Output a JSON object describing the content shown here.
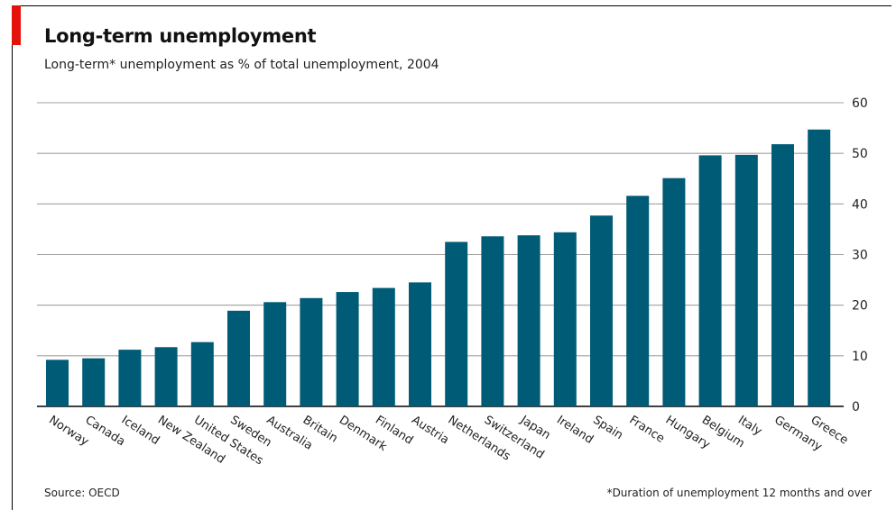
{
  "colors": {
    "accent": "#e3120b",
    "bar": "#005b76",
    "grid": "#a0a0a0",
    "axis": "#000000"
  },
  "header": {
    "title": "Long-term unemployment",
    "subtitle": "Long-term* unemployment as % of total unemployment, 2004"
  },
  "footer": {
    "source": "Source: OECD",
    "footnote": "*Duration of unemployment 12 months and over"
  },
  "chart_data": {
    "type": "bar",
    "categories": [
      "Norway",
      "Canada",
      "Iceland",
      "New Zealand",
      "United States",
      "Sweden",
      "Australia",
      "Britain",
      "Denmark",
      "Finland",
      "Austria",
      "Netherlands",
      "Switzerland",
      "Japan",
      "Ireland",
      "Spain",
      "France",
      "Hungary",
      "Belgium",
      "Italy",
      "Germany",
      "Greece"
    ],
    "values": [
      9.2,
      9.5,
      11.2,
      11.7,
      12.7,
      18.9,
      20.6,
      21.4,
      22.6,
      23.4,
      24.5,
      32.5,
      33.6,
      33.8,
      34.4,
      37.7,
      41.6,
      45.1,
      49.6,
      49.7,
      51.8,
      54.7
    ],
    "ylim": [
      0,
      60
    ],
    "yticks": [
      0,
      10,
      20,
      30,
      40,
      50,
      60
    ],
    "y_axis_side": "right",
    "grid": true,
    "title": "Long-term unemployment",
    "xlabel": "",
    "ylabel": ""
  }
}
